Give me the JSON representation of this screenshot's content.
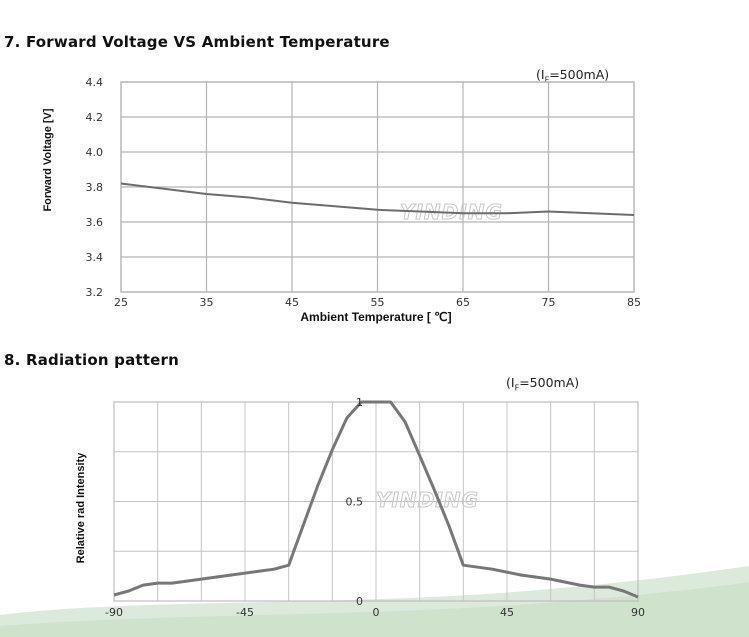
{
  "chart_data": [
    {
      "type": "line",
      "title": "7. Forward Voltage  VS  Ambient Temperature",
      "condition": {
        "prefix": "(I",
        "sub": "F",
        "suffix": "=500mA)"
      },
      "xlabel": "Ambient Temperature [ ℃]",
      "ylabel": "Forward Voltage [V]",
      "xlim": [
        25,
        85
      ],
      "ylim": [
        3.2,
        4.4
      ],
      "xticks": [
        "25",
        "35",
        "45",
        "55",
        "65",
        "75",
        "85"
      ],
      "yticks": [
        "3.2",
        "3.4",
        "3.6",
        "3.8",
        "4.0",
        "4.2",
        "4.4"
      ],
      "grid": true,
      "watermark": "YINDING",
      "series": [
        {
          "x": [
            25,
            30,
            35,
            40,
            45,
            50,
            55,
            60,
            65,
            70,
            75,
            80,
            85
          ],
          "y": [
            3.82,
            3.79,
            3.76,
            3.74,
            3.71,
            3.69,
            3.67,
            3.66,
            3.65,
            3.65,
            3.66,
            3.65,
            3.64
          ]
        }
      ]
    },
    {
      "type": "line",
      "title": "8. Radiation pattern",
      "condition": {
        "prefix": "(I",
        "sub": "F",
        "suffix": "=500mA)"
      },
      "xlabel": "",
      "ylabel": "Relative rad Intensity",
      "xlim": [
        -90,
        90
      ],
      "ylim": [
        0,
        1
      ],
      "xticks": [
        "-90",
        "-45",
        "0",
        "45",
        "90"
      ],
      "yticks": [
        "0",
        "0.5",
        "1"
      ],
      "grid": true,
      "watermark": "YINDING",
      "series": [
        {
          "x": [
            -90,
            -85,
            -80,
            -75,
            -70,
            -60,
            -50,
            -40,
            -35,
            -30,
            -25,
            -20,
            -15,
            -10,
            -5,
            0,
            5,
            10,
            15,
            20,
            25,
            30,
            35,
            40,
            50,
            60,
            70,
            75,
            80,
            85,
            90
          ],
          "y": [
            0.03,
            0.05,
            0.08,
            0.09,
            0.09,
            0.11,
            0.13,
            0.15,
            0.16,
            0.18,
            0.38,
            0.58,
            0.76,
            0.92,
            1.0,
            1.0,
            1.0,
            0.9,
            0.73,
            0.56,
            0.38,
            0.18,
            0.17,
            0.16,
            0.13,
            0.11,
            0.08,
            0.07,
            0.07,
            0.05,
            0.02
          ]
        }
      ]
    }
  ]
}
